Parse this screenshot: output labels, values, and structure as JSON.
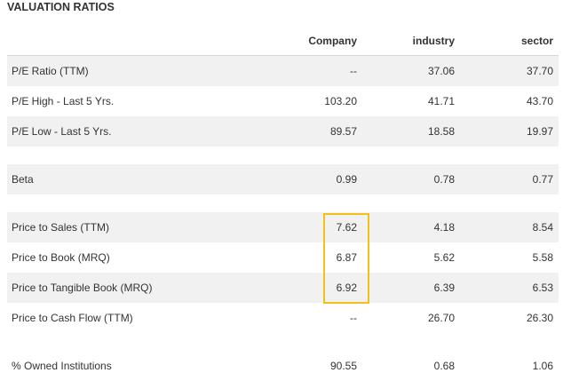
{
  "title": "VALUATION RATIOS",
  "headers": {
    "company": "Company",
    "industry": "industry",
    "sector": "sector"
  },
  "rows": [
    {
      "label": "P/E Ratio (TTM)",
      "company": "--",
      "industry": "37.06",
      "sector": "37.70"
    },
    {
      "label": "P/E High - Last 5 Yrs.",
      "company": "103.20",
      "industry": "41.71",
      "sector": "43.70"
    },
    {
      "label": "P/E Low - Last 5 Yrs.",
      "company": "89.57",
      "industry": "18.58",
      "sector": "19.97"
    },
    {
      "label": "Beta",
      "company": "0.99",
      "industry": "0.78",
      "sector": "0.77"
    },
    {
      "label": "Price to Sales (TTM)",
      "company": "7.62",
      "industry": "4.18",
      "sector": "8.54"
    },
    {
      "label": "Price to Book (MRQ)",
      "company": "6.87",
      "industry": "5.62",
      "sector": "5.58"
    },
    {
      "label": "Price to Tangible Book (MRQ)",
      "company": "6.92",
      "industry": "6.39",
      "sector": "6.53"
    },
    {
      "label": "Price to Cash Flow (TTM)",
      "company": "--",
      "industry": "26.70",
      "sector": "26.30"
    },
    {
      "label": "% Owned Institutions",
      "company": "90.55",
      "industry": "0.68",
      "sector": "1.06"
    }
  ],
  "colors": {
    "row_shade": "#f1f1f1",
    "highlight_border": "#f3c01a",
    "text": "#333333"
  }
}
